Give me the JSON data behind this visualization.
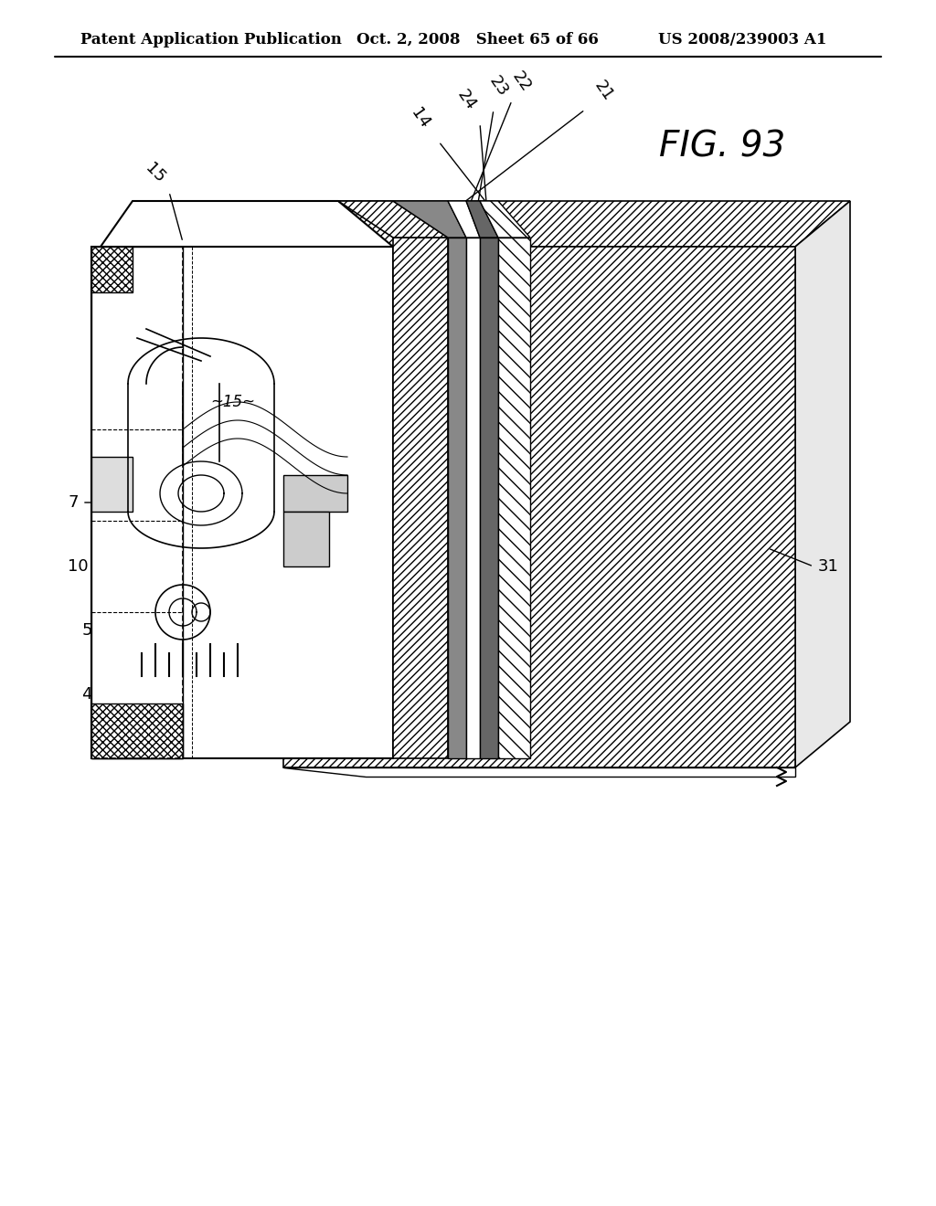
{
  "bg_color": "#ffffff",
  "header_left": "Patent Application Publication",
  "header_mid": "Oct. 2, 2008   Sheet 65 of 66",
  "header_right": "US 2008/239003 A1",
  "fig_label": "FIG. 93",
  "component_labels": [
    "4",
    "5",
    "7",
    "10",
    "14",
    "15",
    "21",
    "22",
    "23",
    "24",
    "31"
  ],
  "title_fontsize": 12,
  "label_fontsize": 13
}
